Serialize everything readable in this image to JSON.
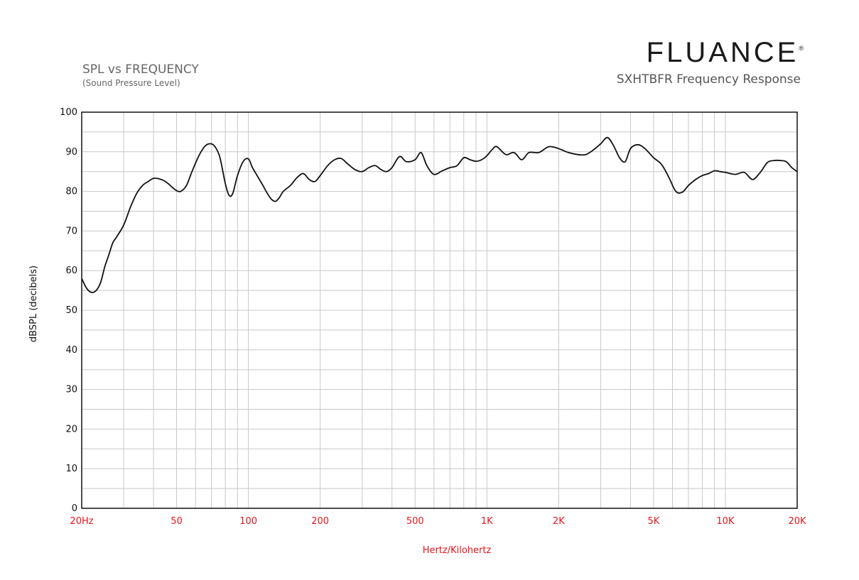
{
  "brand": {
    "logo": "FLUANCE",
    "logo_mark": "®",
    "product_title": "SXHTBFR Frequency Response"
  },
  "chart_data": {
    "type": "line",
    "title": "SPL vs FREQUENCY",
    "subtitle": "(Sound Pressure Level)",
    "xlabel": "Hertz/Kilohertz",
    "ylabel": "dBSPL (decibels)",
    "xscale": "log",
    "xlim": [
      20,
      20000
    ],
    "ylim": [
      0,
      100
    ],
    "grid": true,
    "legend": "none",
    "colors": {
      "line": "#111111",
      "grid": "#c8c8c8",
      "x_tick_labels": "#e8151b"
    },
    "yticks": [
      0,
      10,
      20,
      30,
      40,
      50,
      60,
      70,
      80,
      90,
      100
    ],
    "xticks": [
      {
        "value": 20,
        "label": "20Hz"
      },
      {
        "value": 50,
        "label": "50"
      },
      {
        "value": 100,
        "label": "100"
      },
      {
        "value": 200,
        "label": "200"
      },
      {
        "value": 500,
        "label": "500"
      },
      {
        "value": 1000,
        "label": "1K"
      },
      {
        "value": 2000,
        "label": "2K"
      },
      {
        "value": 5000,
        "label": "5K"
      },
      {
        "value": 10000,
        "label": "10K"
      },
      {
        "value": 20000,
        "label": "20K"
      }
    ],
    "series": [
      {
        "x": [
          20,
          21,
          22,
          23,
          24,
          25,
          26,
          27,
          28,
          30,
          32,
          34,
          36,
          38,
          40,
          42,
          44,
          46,
          48,
          50,
          52,
          55,
          58,
          62,
          66,
          70,
          73,
          76,
          80,
          83,
          86,
          90,
          95,
          100,
          104,
          110,
          115,
          120,
          125,
          130,
          135,
          140,
          150,
          160,
          170,
          180,
          190,
          200,
          215,
          230,
          245,
          260,
          280,
          300,
          320,
          340,
          360,
          380,
          400,
          430,
          460,
          500,
          530,
          560,
          600,
          650,
          700,
          750,
          800,
          850,
          900,
          950,
          1000,
          1050,
          1100,
          1200,
          1300,
          1400,
          1500,
          1650,
          1800,
          1900,
          2000,
          2200,
          2400,
          2600,
          2800,
          3000,
          3200,
          3400,
          3600,
          3800,
          4000,
          4300,
          4600,
          5000,
          5400,
          5800,
          6200,
          6600,
          7000,
          7500,
          8000,
          8500,
          9000,
          9500,
          10000,
          11000,
          12000,
          13000,
          14000,
          15000,
          16000,
          17000,
          18000,
          19000,
          20000
        ],
        "y": [
          58,
          55.5,
          54.5,
          55,
          57,
          61,
          64,
          67,
          68.5,
          71.5,
          76,
          79.5,
          81.5,
          82.5,
          83.3,
          83.2,
          82.8,
          82,
          81,
          80.2,
          80,
          81.5,
          85,
          89,
          91.5,
          92,
          91,
          88.5,
          82,
          79,
          79.5,
          84,
          87.5,
          88.2,
          86,
          83.5,
          81.5,
          79.5,
          78,
          77.5,
          78.5,
          80,
          81.5,
          83.5,
          84.5,
          83,
          82.5,
          84,
          86.5,
          88,
          88.3,
          87,
          85.5,
          85,
          86,
          86.5,
          85.5,
          85,
          86,
          88.8,
          87.5,
          88,
          89.8,
          86.5,
          84.3,
          85.2,
          86,
          86.5,
          88.5,
          88,
          87.6,
          88,
          89,
          90.5,
          91.3,
          89.3,
          89.8,
          88,
          89.8,
          89.8,
          91.2,
          91.2,
          90.8,
          89.8,
          89.3,
          89.3,
          90.5,
          92,
          93.6,
          91.5,
          88.5,
          87.5,
          90.8,
          91.8,
          90.8,
          88.5,
          86.8,
          83.5,
          80,
          79.8,
          81.5,
          83,
          84,
          84.5,
          85.2,
          85,
          84.8,
          84.3,
          84.8,
          83,
          84.8,
          87.3,
          87.8,
          87.8,
          87.5,
          86,
          85
        ]
      }
    ]
  }
}
